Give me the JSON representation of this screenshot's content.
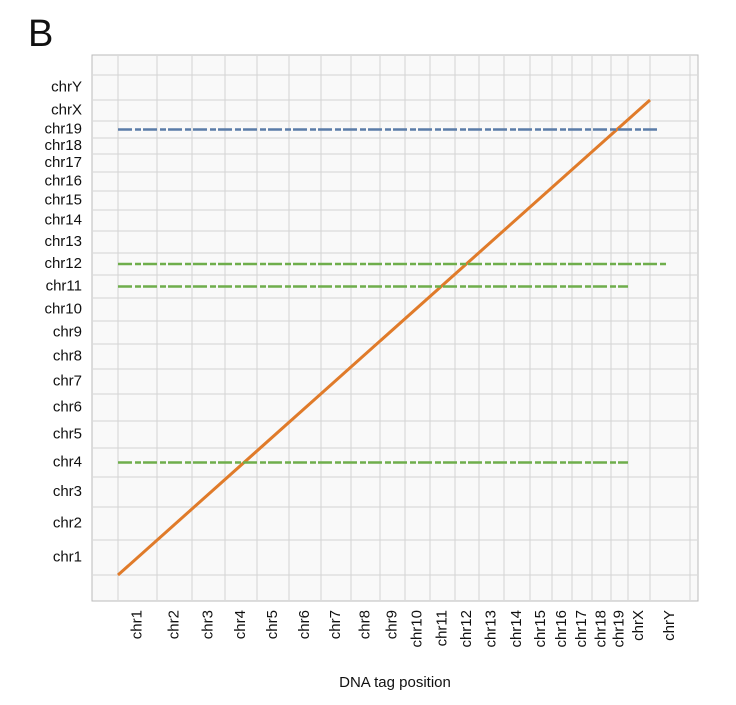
{
  "panel_label": "B",
  "chart_data": {
    "type": "dotplot",
    "x_label": "DNA tag position",
    "categories": [
      "chr1",
      "chr2",
      "chr3",
      "chr4",
      "chr5",
      "chr6",
      "chr7",
      "chr8",
      "chr9",
      "chr10",
      "chr11",
      "chr12",
      "chr13",
      "chr14",
      "chr15",
      "chr16",
      "chr17",
      "chr18",
      "chr19",
      "chrX",
      "chrY"
    ],
    "lines": [
      {
        "color": "#e07b2a",
        "x": [
          0,
          20
        ],
        "y": [
          0,
          20
        ]
      },
      {
        "color": "#5a7ca8",
        "x": [
          0,
          20.2
        ],
        "y": [
          18.5,
          18.5
        ]
      },
      {
        "color": "#6fae4c",
        "x": [
          0,
          20.4
        ],
        "y": [
          11.5,
          11.5
        ]
      },
      {
        "color": "#6fae4c",
        "x": [
          0,
          19
        ],
        "y": [
          10.5,
          10.5
        ]
      },
      {
        "color": "#6fae4c",
        "x": [
          0,
          19
        ],
        "y": [
          3.5,
          3.5
        ]
      }
    ]
  }
}
